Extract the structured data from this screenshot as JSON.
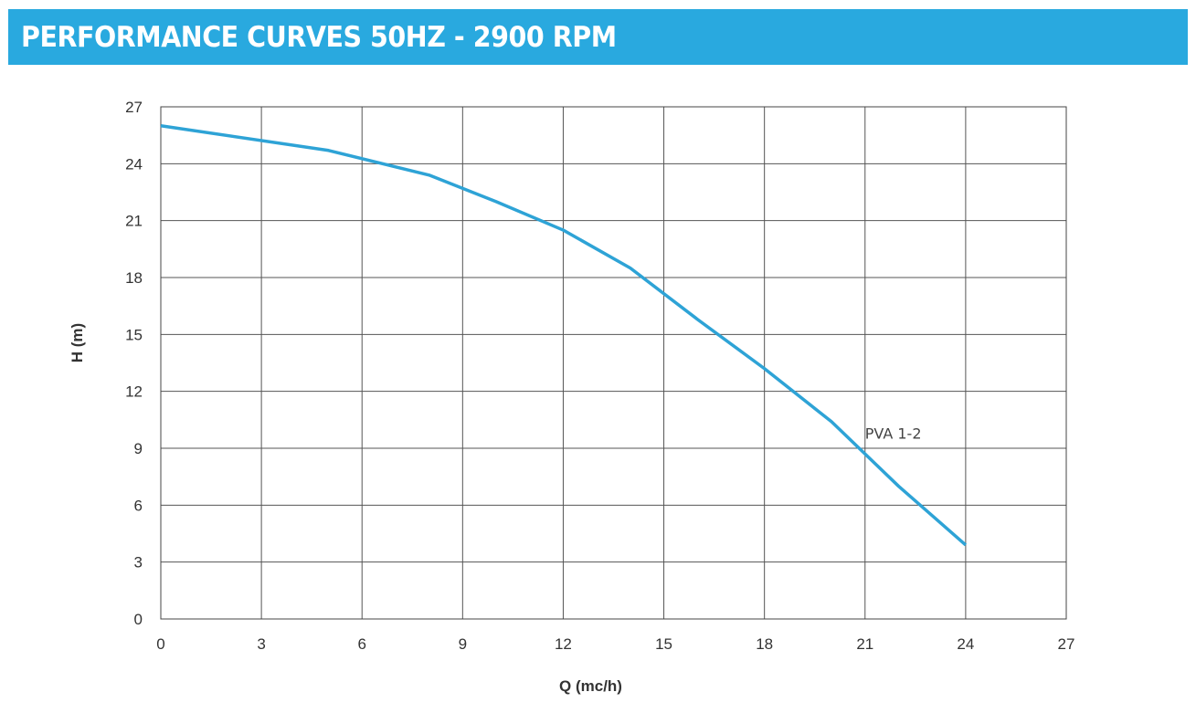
{
  "header": {
    "title": "PERFORMANCE CURVES 50HZ - 2900 RPM",
    "background_color": "#29a9df",
    "text_color": "#ffffff"
  },
  "chart_data": {
    "type": "line",
    "xlabel": "Q (mc/h)",
    "ylabel": "H (m)",
    "xlim": [
      0,
      27
    ],
    "ylim": [
      0,
      27
    ],
    "xticks": [
      0,
      3,
      6,
      9,
      12,
      15,
      18,
      21,
      24,
      27
    ],
    "yticks": [
      0,
      3,
      6,
      9,
      12,
      15,
      18,
      21,
      24,
      27
    ],
    "grid": true,
    "series": [
      {
        "name": "PVA 1-2",
        "color": "#2ea3d6",
        "x": [
          0,
          5,
          8,
          10,
          12,
          14,
          16,
          18,
          20,
          22,
          24
        ],
        "y": [
          26.0,
          24.7,
          23.4,
          22.0,
          20.5,
          18.5,
          15.8,
          13.2,
          10.4,
          7.0,
          3.9
        ]
      }
    ]
  }
}
